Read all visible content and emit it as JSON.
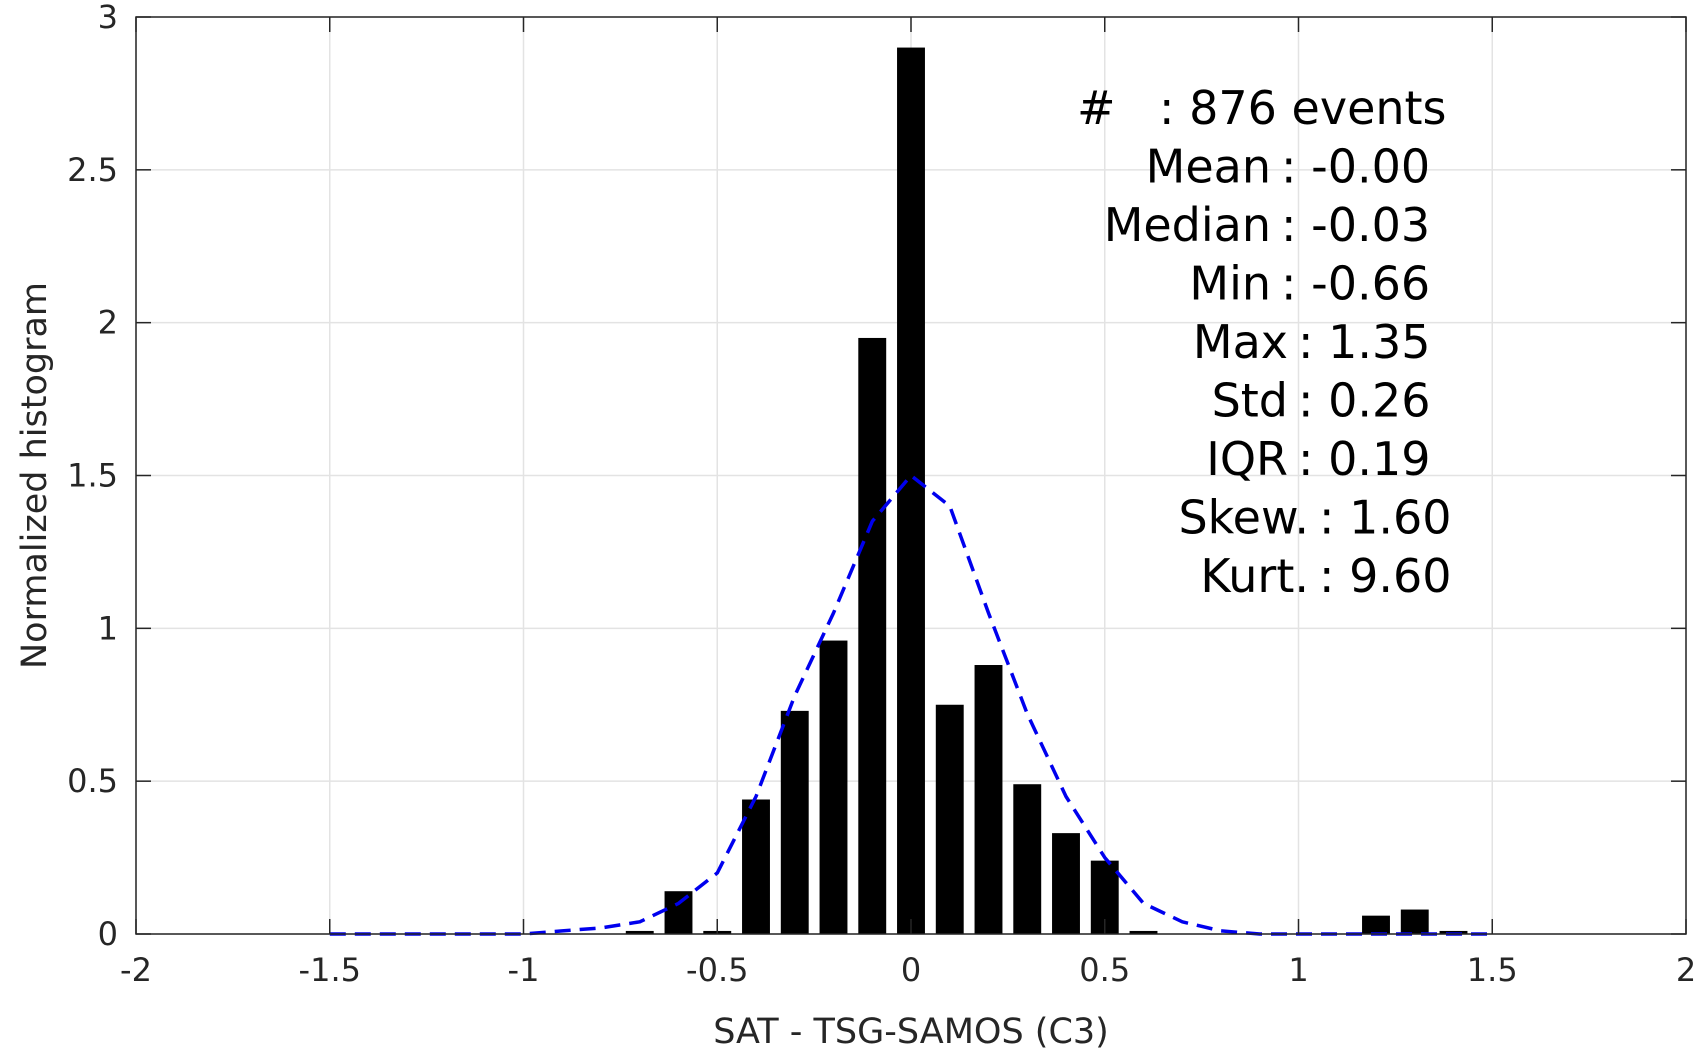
{
  "chart_data": {
    "type": "bar",
    "xlabel": "SAT - TSG-SAMOS (C3)",
    "ylabel": "Normalized histogram",
    "xlim": [
      -2,
      2
    ],
    "ylim": [
      0,
      3
    ],
    "xticks": [
      -2,
      -1.5,
      -1,
      -0.5,
      0,
      0.5,
      1,
      1.5,
      2
    ],
    "xtick_labels": [
      "-2",
      "-1.5",
      "-1",
      "-0.5",
      "0",
      "0.5",
      "1",
      "1.5",
      "2"
    ],
    "yticks": [
      0,
      0.5,
      1,
      1.5,
      2,
      2.5,
      3
    ],
    "ytick_labels": [
      "0",
      "0.5",
      "1",
      "1.5",
      "2",
      "2.5",
      "3"
    ],
    "grid": true,
    "bin_width": 0.1,
    "bar_color": "#000000",
    "bars": [
      {
        "x": -0.7,
        "y": 0.01
      },
      {
        "x": -0.6,
        "y": 0.14
      },
      {
        "x": -0.5,
        "y": 0.01
      },
      {
        "x": -0.4,
        "y": 0.44
      },
      {
        "x": -0.3,
        "y": 0.73
      },
      {
        "x": -0.2,
        "y": 0.96
      },
      {
        "x": -0.1,
        "y": 1.95
      },
      {
        "x": 0.0,
        "y": 2.9
      },
      {
        "x": 0.1,
        "y": 0.75
      },
      {
        "x": 0.2,
        "y": 0.88
      },
      {
        "x": 0.3,
        "y": 0.49
      },
      {
        "x": 0.4,
        "y": 0.33
      },
      {
        "x": 0.5,
        "y": 0.24
      },
      {
        "x": 0.6,
        "y": 0.01
      },
      {
        "x": 1.2,
        "y": 0.06
      },
      {
        "x": 1.3,
        "y": 0.08
      },
      {
        "x": 1.4,
        "y": 0.01
      }
    ],
    "fit_curve": {
      "style": "dashed",
      "color": "#0000ee",
      "x": [
        -1.5,
        -1.4,
        -1.3,
        -1.2,
        -1.1,
        -1.0,
        -0.9,
        -0.8,
        -0.7,
        -0.6,
        -0.5,
        -0.4,
        -0.3,
        -0.2,
        -0.1,
        0.0,
        0.1,
        0.2,
        0.3,
        0.4,
        0.5,
        0.6,
        0.7,
        0.8,
        0.9,
        1.0,
        1.1,
        1.2,
        1.3,
        1.4,
        1.5
      ],
      "y": [
        0.0,
        0.0,
        0.0,
        0.0,
        0.0,
        0.0,
        0.01,
        0.02,
        0.04,
        0.1,
        0.2,
        0.45,
        0.78,
        1.05,
        1.35,
        1.5,
        1.4,
        1.05,
        0.72,
        0.45,
        0.25,
        0.1,
        0.04,
        0.01,
        0.0,
        0.0,
        0.0,
        0.0,
        0.0,
        0.0,
        0.0
      ]
    },
    "annotations": [
      {
        "label": "#  ",
        "value": "876 events"
      },
      {
        "label": "Mean",
        "value": "-0.00"
      },
      {
        "label": "Median",
        "value": "-0.03"
      },
      {
        "label": "Min",
        "value": "-0.66"
      },
      {
        "label": "Max",
        "value": "1.35"
      },
      {
        "label": "Std",
        "value": "0.26"
      },
      {
        "label": "IQR",
        "value": "0.19"
      },
      {
        "label": "Skew.",
        "value": "1.60"
      },
      {
        "label": "Kurt.",
        "value": "9.60"
      }
    ]
  }
}
